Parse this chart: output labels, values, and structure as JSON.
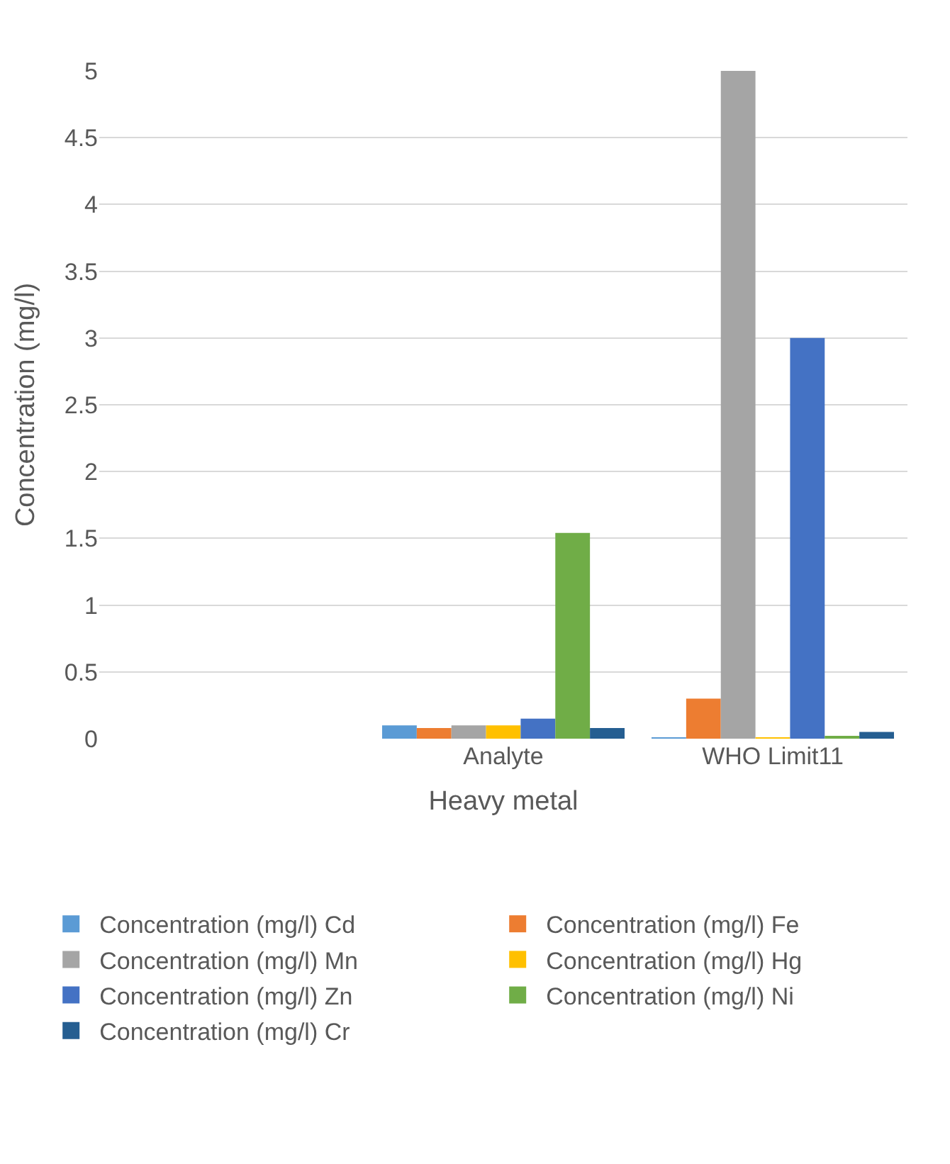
{
  "chart_data": {
    "type": "bar",
    "xlabel": "Heavy metal",
    "ylabel": "Concentration (mg/l)",
    "categories": [
      null,
      "Analyte",
      "WHO Limit11"
    ],
    "series": [
      {
        "name": "Concentration (mg/l) Cd",
        "color": "#5b9bd5",
        "values": [
          null,
          0.1,
          0.01
        ]
      },
      {
        "name": "Concentration (mg/l) Fe",
        "color": "#ed7d31",
        "values": [
          null,
          0.08,
          0.3
        ]
      },
      {
        "name": "Concentration (mg/l) Mn",
        "color": "#a5a5a5",
        "values": [
          null,
          0.1,
          5
        ]
      },
      {
        "name": "Concentration (mg/l) Hg",
        "color": "#ffc000",
        "values": [
          null,
          0.1,
          0.01
        ]
      },
      {
        "name": "Concentration (mg/l) Zn",
        "color": "#4472c4",
        "values": [
          null,
          0.15,
          3
        ]
      },
      {
        "name": "Concentration (mg/l) Ni",
        "color": "#70ad47",
        "values": [
          null,
          1.54,
          0.02
        ]
      },
      {
        "name": "Concentration (mg/l) Cr",
        "color": "#255e91",
        "values": [
          null,
          0.08,
          0.05
        ]
      }
    ],
    "ylim": [
      0,
      5
    ],
    "yticks": [
      0,
      0.5,
      1,
      1.5,
      2,
      2.5,
      3,
      3.5,
      4,
      4.5,
      5
    ],
    "grid": "y",
    "legend": "bottom"
  }
}
